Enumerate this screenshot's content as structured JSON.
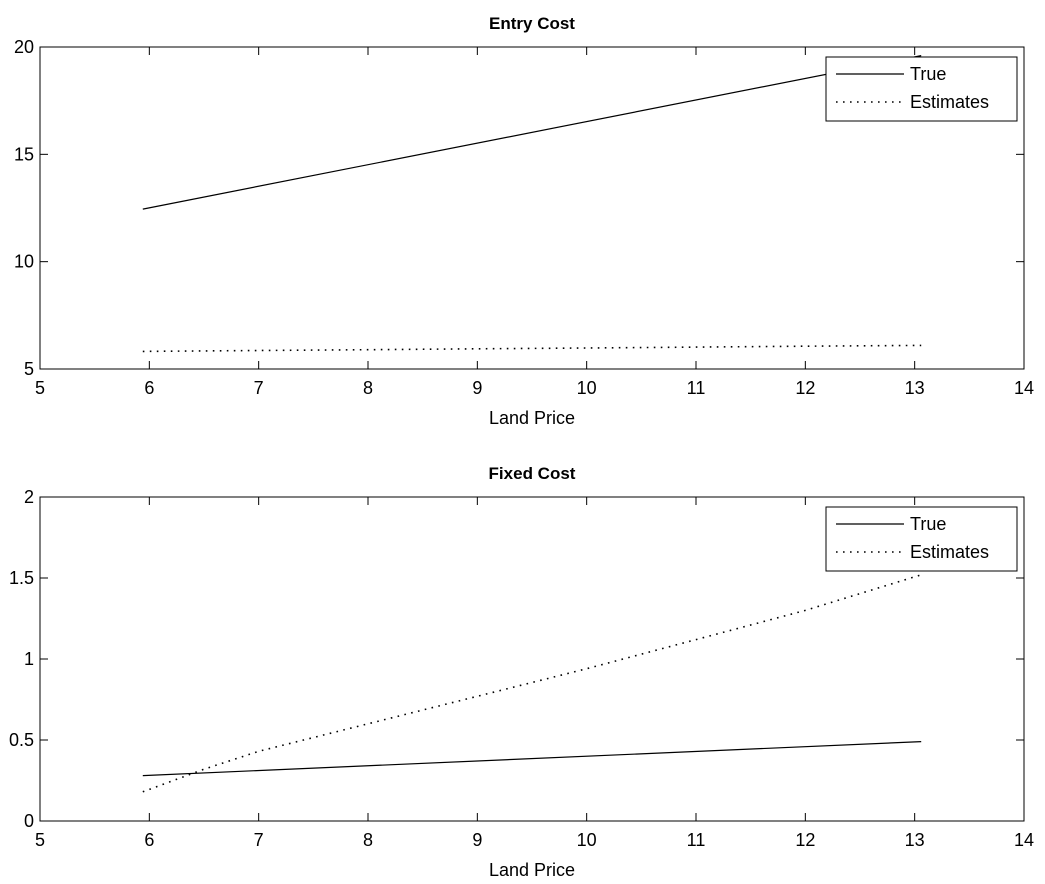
{
  "chart_data": [
    {
      "type": "line",
      "title": "Entry Cost",
      "xlabel": "Land Price",
      "ylabel": "",
      "xlim": [
        5,
        14
      ],
      "ylim": [
        5,
        20
      ],
      "xticks": [
        "5",
        "6",
        "7",
        "8",
        "9",
        "10",
        "11",
        "12",
        "13",
        "14"
      ],
      "yticks": [
        "5",
        "10",
        "15",
        "20"
      ],
      "grid": false,
      "legend_position": "top-right",
      "series": [
        {
          "name": "True",
          "style": "solid",
          "color": "#000000",
          "x": [
            5.94,
            13.06
          ],
          "y": [
            12.45,
            19.6
          ]
        },
        {
          "name": "Estimates",
          "style": "dotted",
          "color": "#000000",
          "x": [
            5.94,
            7,
            8,
            9,
            10,
            11,
            12,
            13.06
          ],
          "y": [
            5.82,
            5.86,
            5.9,
            5.94,
            5.98,
            6.02,
            6.06,
            6.1
          ]
        }
      ]
    },
    {
      "type": "line",
      "title": "Fixed Cost",
      "xlabel": "Land Price",
      "ylabel": "",
      "xlim": [
        5,
        14
      ],
      "ylim": [
        0,
        2
      ],
      "xticks": [
        "5",
        "6",
        "7",
        "8",
        "9",
        "10",
        "11",
        "12",
        "13",
        "14"
      ],
      "yticks": [
        "0",
        "0.5",
        "1",
        "1.5",
        "2"
      ],
      "grid": false,
      "legend_position": "top-right",
      "series": [
        {
          "name": "True",
          "style": "solid",
          "color": "#000000",
          "x": [
            5.94,
            13.06
          ],
          "y": [
            0.28,
            0.49
          ]
        },
        {
          "name": "Estimates",
          "style": "dotted",
          "color": "#000000",
          "x": [
            5.94,
            6.5,
            7,
            8,
            9,
            10,
            11,
            12,
            13.06
          ],
          "y": [
            0.18,
            0.32,
            0.43,
            0.6,
            0.77,
            0.94,
            1.12,
            1.3,
            1.52
          ]
        }
      ]
    }
  ]
}
